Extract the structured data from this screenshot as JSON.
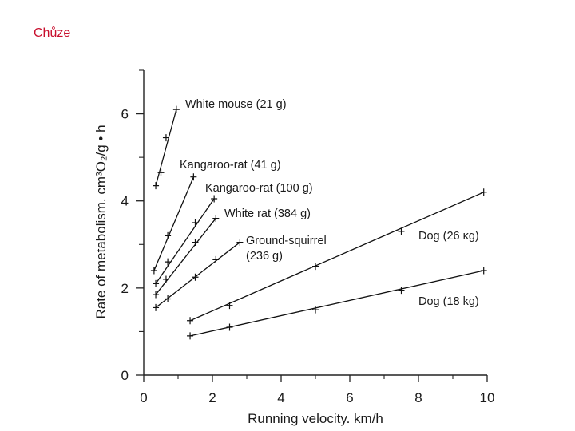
{
  "slide": {
    "title": "Chůze"
  },
  "chart_data": {
    "type": "line",
    "title": "",
    "xlabel": "Running velocity. km/h",
    "ylabel": "Rate of metabolism. cm³O₂/g • h",
    "xlim": [
      0,
      10
    ],
    "ylim": [
      0,
      7
    ],
    "x_ticks": [
      0,
      2,
      4,
      6,
      8,
      10
    ],
    "y_ticks": [
      0,
      2,
      4,
      6
    ],
    "grid": false,
    "series": [
      {
        "name": "White mouse (21 g)",
        "x": [
          0.35,
          0.5,
          0.65,
          0.95
        ],
        "y": [
          4.35,
          4.65,
          5.45,
          6.1
        ]
      },
      {
        "name": "Kangaroo-rat (41 g)",
        "x": [
          0.3,
          0.7,
          1.45
        ],
        "y": [
          2.4,
          3.2,
          4.55
        ]
      },
      {
        "name": "Kangaroo-rat (100 g)",
        "x": [
          0.35,
          0.7,
          1.5,
          2.05
        ],
        "y": [
          2.1,
          2.6,
          3.5,
          4.05
        ]
      },
      {
        "name": "White rat (384 g)",
        "x": [
          0.35,
          0.65,
          1.5,
          2.1
        ],
        "y": [
          1.85,
          2.2,
          3.05,
          3.6
        ]
      },
      {
        "name": "Ground-squirrel (236 g)",
        "x": [
          0.35,
          0.7,
          1.5,
          2.1,
          2.8
        ],
        "y": [
          1.55,
          1.75,
          2.25,
          2.65,
          3.05
        ]
      },
      {
        "name": "Dog (26 κg)",
        "x": [
          1.35,
          2.5,
          5.0,
          7.5,
          9.9
        ],
        "y": [
          1.25,
          1.6,
          2.5,
          3.3,
          4.2
        ]
      },
      {
        "name": "Dog (18 kg)",
        "x": [
          1.35,
          2.5,
          5.0,
          7.5,
          9.9
        ],
        "y": [
          0.9,
          1.1,
          1.5,
          1.95,
          2.4
        ]
      }
    ]
  }
}
